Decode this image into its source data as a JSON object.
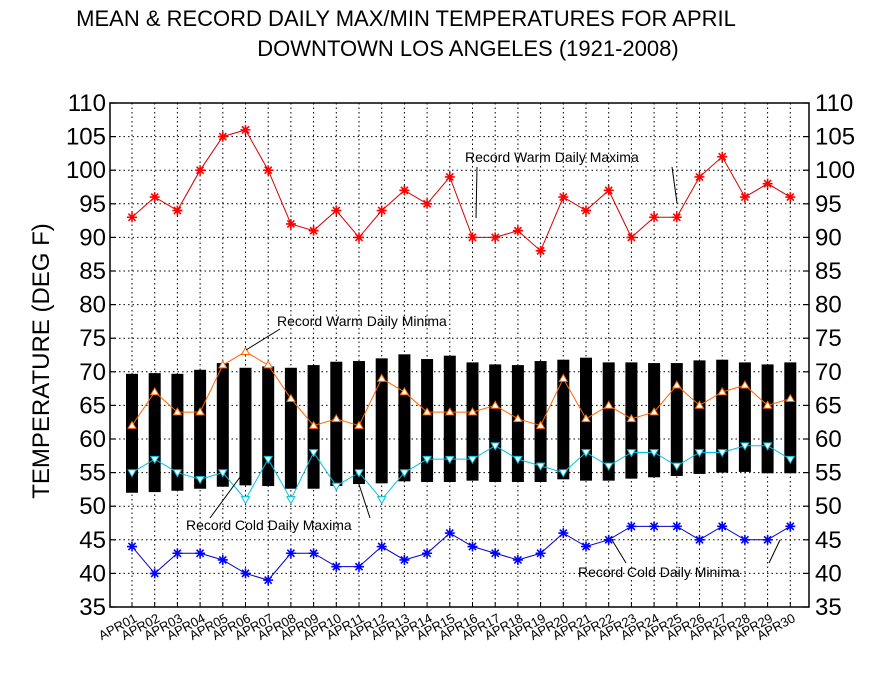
{
  "title_line1": "MEAN & RECORD DAILY MAX/MIN TEMPERATURES FOR APRIL",
  "title_line2": "DOWNTOWN LOS ANGELES (1921-2008)",
  "chart_data": {
    "type": "line",
    "ylabel": "TEMPERATURE (DEG F)",
    "ylim": [
      35,
      110
    ],
    "yticks": [
      35,
      40,
      45,
      50,
      55,
      60,
      65,
      70,
      75,
      80,
      85,
      90,
      95,
      100,
      105,
      110
    ],
    "grid": true,
    "categories": [
      "APR01",
      "APR02",
      "APR03",
      "APR04",
      "APR05",
      "APR06",
      "APR07",
      "APR08",
      "APR09",
      "APR10",
      "APR11",
      "APR12",
      "APR13",
      "APR14",
      "APR15",
      "APR16",
      "APR17",
      "APR18",
      "APR19",
      "APR20",
      "APR21",
      "APR22",
      "APR23",
      "APR24",
      "APR25",
      "APR26",
      "APR27",
      "APR28",
      "APR29",
      "APR30"
    ],
    "mean_range": {
      "color": "#000000",
      "max": [
        69.7,
        69.8,
        69.7,
        70.3,
        71.3,
        70.6,
        70.8,
        70.6,
        71.0,
        71.5,
        71.6,
        72.0,
        72.6,
        71.9,
        72.4,
        71.4,
        71.1,
        71.0,
        71.6,
        71.8,
        72.1,
        71.4,
        71.4,
        71.3,
        71.3,
        71.7,
        71.8,
        71.4,
        71.1,
        71.4
      ],
      "min": [
        52.0,
        52.1,
        52.3,
        52.6,
        52.9,
        53.1,
        53.0,
        52.6,
        52.6,
        53.0,
        53.3,
        53.4,
        53.7,
        53.6,
        53.6,
        53.8,
        53.6,
        53.6,
        53.6,
        54.0,
        53.8,
        53.8,
        54.1,
        54.3,
        54.5,
        54.8,
        55.0,
        55.1,
        54.9,
        54.9
      ]
    },
    "series": [
      {
        "name": "Record Warm Daily Maxima",
        "color": "#ff0000",
        "line_color": "#d40000",
        "marker": "star",
        "values": [
          93,
          96,
          94,
          100,
          105,
          106,
          100,
          92,
          91,
          94,
          90,
          94,
          97,
          95,
          99,
          90,
          90,
          91,
          88,
          96,
          94,
          97,
          90,
          93,
          93,
          99,
          102,
          96,
          98,
          96
        ]
      },
      {
        "name": "Record Warm Daily Minima",
        "color": "#ff6600",
        "line_color": "#ff6600",
        "marker": "triangle",
        "values": [
          62,
          67,
          64,
          64,
          71,
          73,
          71,
          66,
          62,
          63,
          62,
          69,
          67,
          64,
          64,
          64,
          65,
          63,
          62,
          69,
          63,
          65,
          63,
          64,
          68,
          65,
          67,
          68,
          65,
          66
        ]
      },
      {
        "name": "Record Cold Daily Maxima",
        "color": "#00c0e0",
        "line_color": "#00c0e0",
        "marker": "triangle-down",
        "values": [
          55,
          57,
          55,
          54,
          55,
          51,
          57,
          51,
          58,
          53,
          55,
          51,
          55,
          57,
          57,
          57,
          59,
          57,
          56,
          55,
          58,
          56,
          58,
          58,
          56,
          58,
          58,
          59,
          59,
          57
        ]
      },
      {
        "name": "Record Cold Daily Minima",
        "color": "#0000ff",
        "line_color": "#0000cc",
        "marker": "star",
        "values": [
          44,
          40,
          43,
          43,
          42,
          40,
          39,
          43,
          43,
          41,
          41,
          44,
          42,
          43,
          46,
          44,
          43,
          42,
          43,
          46,
          44,
          45,
          47,
          47,
          47,
          45,
          47,
          45,
          45,
          47
        ]
      }
    ],
    "annotations": [
      {
        "text": "Record Warm Daily Maxima",
        "series": 0,
        "targets": [
          15,
          24
        ]
      },
      {
        "text": "Record Warm Daily Minima",
        "series": 1,
        "targets": [
          5
        ]
      },
      {
        "text": "Record Cold Daily Maxima",
        "series": 2,
        "targets": [
          5,
          11
        ]
      },
      {
        "text": "Record Cold Daily Minima",
        "series": 3,
        "targets": [
          21,
          28
        ]
      }
    ]
  }
}
